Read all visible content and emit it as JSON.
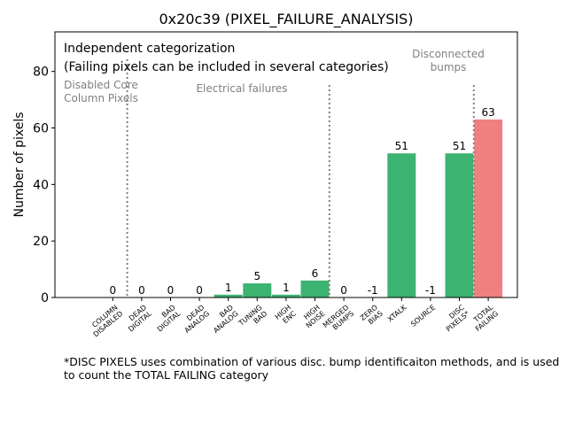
{
  "chart_data": {
    "type": "bar",
    "title": "0x20c39 (PIXEL_FAILURE_ANALYSIS)",
    "ylabel": "Number of pixels",
    "xlabel": "",
    "ylim": [
      0,
      94
    ],
    "yticks": [
      0,
      20,
      40,
      60,
      80
    ],
    "categories": [
      "COLUMN\nDISABLED",
      "DEAD\nDIGITAL",
      "BAD\nDIGITAL",
      "DEAD\nANALOG",
      "BAD\nANALOG",
      "TUNING\nBAD",
      "HIGH\nENC",
      "HIGH\nNOISE",
      "MERGED\nBUMPS",
      "ZERO\nBIAS",
      "XTALK",
      "SOURCE",
      "DISC\nPIXELS*",
      "TOTAL\nFAILING"
    ],
    "values": [
      0,
      0,
      0,
      0,
      1,
      5,
      1,
      6,
      0,
      -1,
      51,
      -1,
      51,
      63
    ],
    "value_labels": [
      "0",
      "0",
      "0",
      "0",
      "1",
      "5",
      "1",
      "6",
      "0",
      "-1",
      "51",
      "-1",
      "51",
      "63"
    ],
    "bar_colors": [
      "#3cb371",
      "#3cb371",
      "#3cb371",
      "#3cb371",
      "#3cb371",
      "#3cb371",
      "#3cb371",
      "#3cb371",
      "#3cb371",
      "#3cb371",
      "#3cb371",
      "#3cb371",
      "#3cb371",
      "#f08080"
    ],
    "annotations": {
      "heading_line1": "Independent categorization",
      "heading_line2": "(Failing pixels can be included in several categories)",
      "disabled_core": "Disabled Core\nColumn Pixels",
      "electrical": "Electrical failures",
      "disconnected": "Disconnected\nbumps"
    },
    "dividers_after_category": [
      0,
      7,
      12
    ],
    "grid": false,
    "legend": "none"
  },
  "footnote": "*DISC PIXELS uses combination of various disc. bump identificaiton methods, and is used\nto count the TOTAL FAILING category"
}
